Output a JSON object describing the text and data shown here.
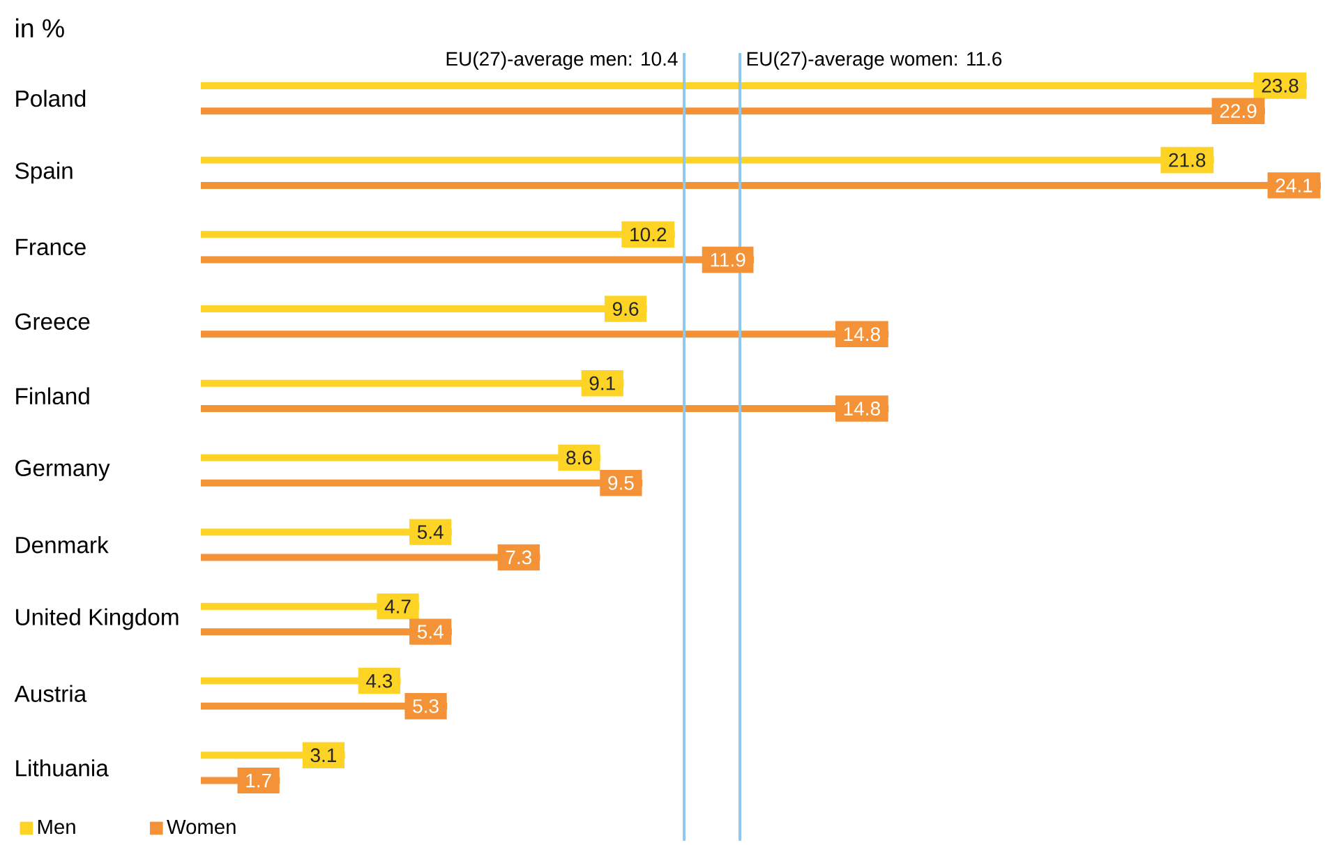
{
  "chart_data": {
    "type": "bar",
    "orientation": "horizontal",
    "subtitle": "in %",
    "categories": [
      "Poland",
      "Spain",
      "France",
      "Greece",
      "Finland",
      "Germany",
      "Denmark",
      "United Kingdom",
      "Austria",
      "Lithuania"
    ],
    "series": [
      {
        "name": "Men",
        "color": "#fdd426",
        "values": [
          23.8,
          21.8,
          10.2,
          9.6,
          9.1,
          8.6,
          5.4,
          4.7,
          4.3,
          3.1
        ]
      },
      {
        "name": "Women",
        "color": "#f39237",
        "values": [
          22.9,
          24.1,
          11.9,
          14.8,
          14.8,
          9.5,
          7.3,
          5.4,
          5.3,
          1.7
        ]
      }
    ],
    "data_labels": true,
    "xlim": [
      0,
      24.1
    ],
    "tick_labels": "y",
    "legend": "bottom left",
    "ref_lines": [
      {
        "axis": "x",
        "value": 10.4,
        "label": "EU(27)-average men: 10.4",
        "color": "#8ec8ea"
      },
      {
        "axis": "x",
        "value": 11.6,
        "label": "EU(27)-average women: 11.6",
        "color": "#8ec8ea"
      }
    ]
  }
}
